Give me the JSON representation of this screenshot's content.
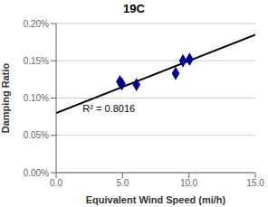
{
  "chart_data": {
    "type": "scatter",
    "title": "19C",
    "xlabel": "Equivalent Wind Speed (mi/h)",
    "ylabel": "Damping Ratio",
    "xlim": [
      0.0,
      15.0
    ],
    "ylim": [
      0.0,
      0.002
    ],
    "xticks": [
      {
        "value": 0.0,
        "label": "0.0"
      },
      {
        "value": 5.0,
        "label": "5.0"
      },
      {
        "value": 10.0,
        "label": "10.0"
      },
      {
        "value": 15.0,
        "label": "15.0"
      }
    ],
    "yticks": [
      {
        "value": 0.0,
        "label": "0.00%"
      },
      {
        "value": 0.0005,
        "label": "0.05%"
      },
      {
        "value": 0.001,
        "label": "0.10%"
      },
      {
        "value": 0.0015,
        "label": "0.15%"
      },
      {
        "value": 0.002,
        "label": "0.20%"
      }
    ],
    "grid": "y",
    "series": [
      {
        "type": "line",
        "color": "#000000",
        "x": [
          0.0,
          15.0
        ],
        "values": [
          0.0008,
          0.00185
        ]
      },
      {
        "type": "scatter",
        "color": "#00008B",
        "marker": "diamond",
        "x": [
          4.8,
          4.95,
          6.05,
          9.0,
          9.55,
          10.05
        ],
        "values": [
          0.00122,
          0.00119,
          0.00118,
          0.00133,
          0.0015,
          0.00152
        ]
      }
    ],
    "annotations": [
      {
        "text": "R² = 0.8016",
        "x": 2.0,
        "y": 0.00086
      }
    ]
  }
}
